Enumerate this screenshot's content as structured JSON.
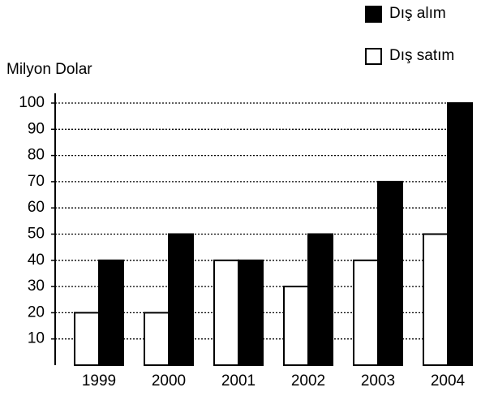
{
  "chart_data": {
    "type": "bar",
    "y_label": "Milyon Dolar",
    "categories": [
      "1999",
      "2000",
      "2001",
      "2002",
      "2003",
      "2004"
    ],
    "series": [
      {
        "name": "Dış satım",
        "color": "#ffffff",
        "values": [
          20,
          20,
          40,
          30,
          40,
          50
        ]
      },
      {
        "name": "Dış alım",
        "color": "#000000",
        "values": [
          40,
          50,
          40,
          50,
          70,
          100
        ]
      }
    ],
    "ylim": [
      0,
      100
    ],
    "yticks": [
      10,
      20,
      30,
      40,
      50,
      60,
      70,
      80,
      90,
      100
    ],
    "grid": true,
    "legend": "top-right"
  }
}
